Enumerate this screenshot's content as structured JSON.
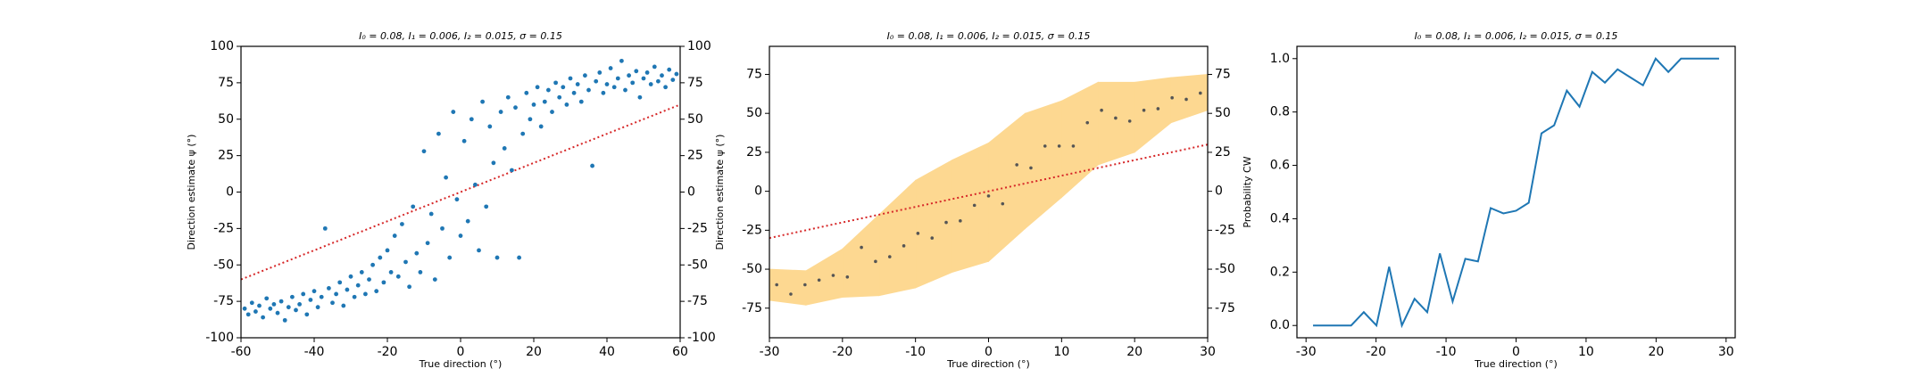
{
  "chart_data": [
    {
      "type": "scatter",
      "title": "I₀ = 0.08, I₁ = 0.006, I₂ = 0.015, σ = 0.15",
      "xlabel": "True direction (°)",
      "ylabel": "Direction estimate ψ (°)",
      "x": [
        -59,
        -58,
        -57,
        -56,
        -55,
        -54,
        -53,
        -52,
        -51,
        -50,
        -49,
        -48,
        -47,
        -46,
        -45,
        -44,
        -43,
        -42,
        -41,
        -40,
        -39,
        -38,
        -37,
        -36,
        -35,
        -34,
        -33,
        -32,
        -31,
        -30,
        -29,
        -28,
        -27,
        -26,
        -25,
        -24,
        -23,
        -22,
        -21,
        -20,
        -19,
        -18,
        -17,
        -16,
        -15,
        -14,
        -13,
        -12,
        -11,
        -10,
        -9,
        -8,
        -7,
        -6,
        -5,
        -4,
        -3,
        -2,
        -1,
        0,
        1,
        2,
        3,
        4,
        5,
        6,
        7,
        8,
        9,
        10,
        11,
        12,
        13,
        14,
        15,
        16,
        17,
        18,
        19,
        20,
        21,
        22,
        23,
        24,
        25,
        26,
        27,
        28,
        29,
        30,
        31,
        32,
        33,
        34,
        35,
        36,
        37,
        38,
        39,
        40,
        41,
        42,
        43,
        44,
        45,
        46,
        47,
        48,
        49,
        50,
        51,
        52,
        53,
        54,
        55,
        56,
        57,
        58,
        59
      ],
      "values": [
        -80,
        -84,
        -76,
        -82,
        -78,
        -86,
        -73,
        -80,
        -77,
        -83,
        -75,
        -88,
        -79,
        -72,
        -81,
        -77,
        -70,
        -84,
        -74,
        -68,
        -79,
        -72,
        -25,
        -66,
        -76,
        -70,
        -62,
        -78,
        -67,
        -58,
        -72,
        -64,
        -55,
        -70,
        -60,
        -50,
        -68,
        -45,
        -62,
        -40,
        -55,
        -30,
        -58,
        -22,
        -48,
        -65,
        -10,
        -42,
        -55,
        28,
        -35,
        -15,
        -60,
        40,
        -25,
        10,
        -45,
        55,
        -5,
        -30,
        35,
        -20,
        50,
        5,
        -40,
        62,
        -10,
        45,
        20,
        -45,
        55,
        30,
        65,
        15,
        58,
        -45,
        40,
        68,
        50,
        60,
        72,
        45,
        62,
        70,
        55,
        75,
        65,
        72,
        60,
        78,
        68,
        74,
        62,
        80,
        70,
        18,
        76,
        82,
        68,
        74,
        85,
        72,
        78,
        90,
        70,
        80,
        75,
        83,
        65,
        78,
        82,
        74,
        86,
        76,
        80,
        72,
        84,
        77,
        81
      ],
      "color": "#1f77b4",
      "ref_line": {
        "x": [
          -60,
          60
        ],
        "y": [
          -60,
          60
        ],
        "color": "#d62728"
      },
      "xlim": [
        -60,
        60
      ],
      "xticks": [
        -60,
        -40,
        -20,
        0,
        20,
        40,
        60
      ],
      "ylim": [
        -100,
        100
      ],
      "yticks": [
        -100,
        -75,
        -50,
        -25,
        0,
        25,
        50,
        75,
        100
      ],
      "y2lim": [
        -100,
        100
      ],
      "y2ticks": [
        -100,
        -75,
        -50,
        -25,
        0,
        25,
        50,
        75,
        100
      ]
    },
    {
      "type": "scatter",
      "title": "I₀ = 0.08, I₁ = 0.006, I₂ = 0.015, σ = 0.15",
      "xlabel": "True direction (°)",
      "ylabel": "Direction estimate ψ (°)",
      "x": [
        -29,
        -27.07,
        -25.13,
        -23.2,
        -21.27,
        -19.33,
        -17.4,
        -15.47,
        -13.53,
        -11.6,
        -9.67,
        -7.73,
        -5.8,
        -3.87,
        -1.93,
        0,
        1.93,
        3.87,
        5.8,
        7.73,
        9.67,
        11.6,
        13.53,
        15.47,
        17.4,
        19.33,
        21.27,
        23.2,
        25.13,
        27.07,
        29
      ],
      "values": [
        -60,
        -66,
        -60,
        -57,
        -54,
        -55,
        -36,
        -45,
        -42,
        -35,
        -27,
        -30,
        -20,
        -19,
        -9,
        -3,
        -8,
        17,
        15,
        29,
        29,
        29,
        44,
        52,
        47,
        45,
        52,
        53,
        60,
        59,
        63
      ],
      "color": "#555555",
      "band": {
        "x": [
          -30,
          -25,
          -20,
          -15,
          -10,
          -5,
          0,
          5,
          10,
          15,
          20,
          25,
          30
        ],
        "lower": [
          -70,
          -73,
          -68,
          -67,
          -62,
          -52,
          -45,
          -24,
          -4,
          17,
          25,
          44,
          52
        ],
        "upper": [
          -50,
          -51,
          -37,
          -15,
          7,
          20,
          31,
          50,
          58,
          70,
          70,
          73,
          75
        ],
        "color": "#fdd891"
      },
      "ref_line": {
        "x": [
          -30,
          30
        ],
        "y": [
          -30,
          30
        ],
        "color": "#d62728"
      },
      "xlim": [
        -30,
        30
      ],
      "xticks": [
        -30,
        -20,
        -10,
        0,
        10,
        20,
        30
      ],
      "ylim": [
        -94,
        93
      ],
      "yticks": [
        -75,
        -50,
        -25,
        0,
        25,
        50,
        75
      ],
      "y2lim": [
        -94,
        93
      ],
      "y2ticks": [
        -75,
        -50,
        -25,
        0,
        25,
        50,
        75
      ]
    },
    {
      "type": "line",
      "title": "I₀ = 0.08, I₁ = 0.006, I₂ = 0.015, σ = 0.15",
      "xlabel": "True direction (°)",
      "ylabel": "Probability CW",
      "x": [
        -29,
        -27.19,
        -25.38,
        -23.56,
        -21.75,
        -19.94,
        -18.13,
        -16.31,
        -14.5,
        -12.69,
        -10.88,
        -9.06,
        -7.25,
        -5.44,
        -3.63,
        -1.81,
        0,
        1.81,
        3.63,
        5.44,
        7.25,
        9.06,
        10.88,
        12.69,
        14.5,
        16.31,
        18.13,
        19.94,
        21.75,
        23.56,
        25.38,
        27.19,
        29
      ],
      "values": [
        0,
        0,
        0,
        0,
        0.05,
        0,
        0.22,
        0,
        0.1,
        0.05,
        0.27,
        0.09,
        0.25,
        0.24,
        0.44,
        0.42,
        0.43,
        0.46,
        0.72,
        0.75,
        0.88,
        0.82,
        0.95,
        0.91,
        0.96,
        0.93,
        0.9,
        1.0,
        0.95,
        1,
        1,
        1,
        1
      ],
      "color": "#1f77b4",
      "xlim": [
        -31.3,
        31.3
      ],
      "xticks": [
        -30,
        -20,
        -10,
        0,
        10,
        20,
        30
      ],
      "ylim": [
        -0.046,
        1.046
      ],
      "yticks": [
        {
          "value": 0,
          "label": "0.0"
        },
        0.2,
        0.4,
        0.6,
        0.8,
        {
          "value": 1,
          "label": "1.0"
        }
      ]
    }
  ]
}
